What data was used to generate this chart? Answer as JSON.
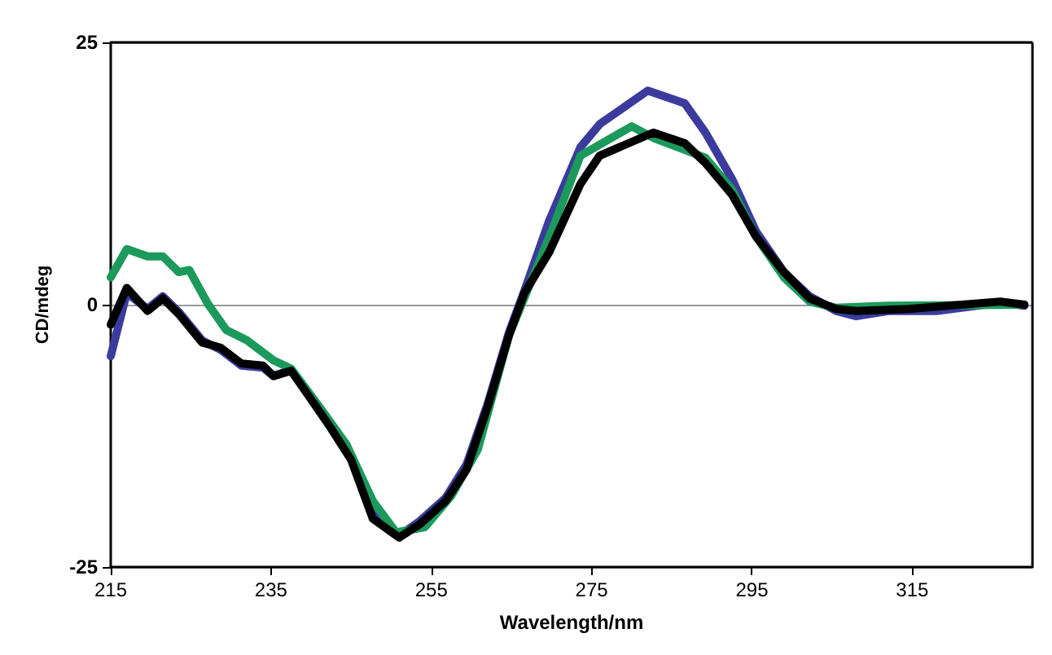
{
  "chart_data": {
    "type": "line",
    "xlabel": "Wavelength/nm",
    "ylabel": "CD/mdeg",
    "xlim": [
      215,
      330
    ],
    "xticks": [
      215,
      235,
      255,
      275,
      295,
      315
    ],
    "ylim": [
      -25,
      25
    ],
    "yticks": [
      -25,
      0,
      25
    ],
    "grid": "y",
    "marker": "none",
    "line_style": "solid",
    "series": [
      {
        "color": "#3b3b9e",
        "x": [
          215,
          217,
          219.6,
          221.5,
          223.5,
          226.4,
          228.7,
          231.3,
          234,
          235.3,
          237.5,
          239.8,
          242.5,
          245,
          247.7,
          251,
          253.6,
          256.8,
          259.4,
          262,
          264.7,
          266.6,
          269.7,
          273.6,
          276,
          282,
          286.6,
          289.2,
          292.5,
          295.5,
          299,
          302.2,
          305.5,
          308,
          312,
          318,
          326,
          329
        ],
        "values": [
          -4.9,
          1.1,
          -0.4,
          0.8,
          -0.7,
          -3.4,
          -4.3,
          -5.8,
          -6.0,
          -6.8,
          -6.2,
          -8.6,
          -11.4,
          -14.4,
          -20,
          -22,
          -20.6,
          -18.4,
          -15.2,
          -9.5,
          -2.6,
          1.3,
          8.0,
          15.0,
          17.2,
          20.4,
          19.2,
          16.4,
          12.0,
          7.0,
          3.1,
          0.8,
          -0.6,
          -1.1,
          -0.6,
          -0.6,
          0.2,
          -0.1
        ]
      },
      {
        "color": "#1b9a5c",
        "x": [
          215,
          217,
          219.6,
          221.5,
          223.5,
          224.8,
          227.1,
          229.4,
          232,
          235.3,
          237.5,
          241.1,
          244.4,
          247.7,
          250.6,
          254.2,
          257.5,
          260.8,
          264.7,
          270,
          273.6,
          280,
          282.7,
          289.2,
          292.5,
          295.5,
          299,
          302.2,
          305.5,
          312,
          329
        ],
        "values": [
          2.6,
          5.3,
          4.6,
          4.6,
          3.1,
          3.3,
          0.1,
          -2.4,
          -3.4,
          -5.3,
          -6.1,
          -9.8,
          -13.3,
          -18.7,
          -21.7,
          -21.2,
          -18.2,
          -13.8,
          -2.9,
          7.0,
          14.2,
          17.0,
          15.9,
          14.0,
          11.0,
          6.5,
          2.6,
          0.3,
          -0.3,
          -0.1,
          0
        ]
      },
      {
        "color": "#000000",
        "x": [
          215,
          217,
          219.6,
          221.5,
          223.5,
          226.4,
          228.7,
          231.3,
          234,
          235.3,
          237.5,
          239.8,
          242.5,
          245,
          247.7,
          251,
          253.6,
          256.8,
          259.4,
          262,
          264.7,
          266.6,
          269.7,
          273.6,
          276,
          282.7,
          286.6,
          289.2,
          292.5,
          295.5,
          299,
          302.2,
          305.5,
          308,
          314.5,
          326,
          329
        ],
        "values": [
          -1.9,
          1.6,
          -0.6,
          0.6,
          -0.9,
          -3.6,
          -4.1,
          -5.6,
          -5.8,
          -6.8,
          -6.3,
          -8.8,
          -11.8,
          -14.8,
          -20.4,
          -22.2,
          -20.9,
          -18.7,
          -15.7,
          -9.8,
          -2.9,
          1.1,
          5.0,
          11.5,
          14.2,
          16.4,
          15.4,
          13.5,
          10.5,
          6.5,
          3.1,
          0.6,
          -0.4,
          -0.6,
          -0.4,
          0.3,
          0
        ]
      }
    ]
  }
}
